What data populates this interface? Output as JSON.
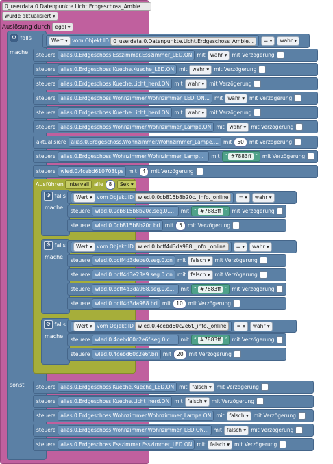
{
  "trigger": {
    "object_id": "0_userdata.0.Datenpunkte.Licht.Erdgeschoss_Ambie...",
    "event": "wurde aktualisiert",
    "ausloesung_label": "Auslösung durch",
    "ausloesung_value": "egal"
  },
  "labels": {
    "falls": "falls",
    "mache": "mache",
    "sonst": "sonst",
    "wert": "Wert",
    "vom_objekt_id": "vom Objekt ID",
    "steuere": "steuere",
    "aktualisiere": "aktualisiere",
    "mit": "mit",
    "mit_verzoegerung": "mit Verzögerung",
    "eq": "=",
    "wahr": "wahr",
    "falsch": "falsch",
    "ausfuehren": "Ausführen",
    "intervall": "Intervall",
    "alle": "alle",
    "sek": "Sek"
  },
  "main_condition": {
    "object_id": "0_userdata.0.Datenpunkte.Licht.Erdgeschoss_Ambie...",
    "value": "wahr"
  },
  "mache_rows": [
    {
      "action": "steuere",
      "target": "alias.0.Erdgeschoss.Esszimmer.Esszimmer_LED.ON",
      "value": "wahr"
    },
    {
      "action": "steuere",
      "target": "alias.0.Erdgeschoss.Kueche.Kueche_LED.ON",
      "value": "wahr"
    },
    {
      "action": "steuere",
      "target": "alias.0.Erdgeschoss.Kueche.Licht_herd.ON",
      "value": "wahr"
    },
    {
      "action": "steuere",
      "target": "alias.0.Erdgeschoss.Wohnzimmer.Wohnzimmer_LED_ON...",
      "value": "wahr"
    },
    {
      "action": "steuere",
      "target": "alias.0.Erdgeschoss.Kueche.Licht_herd.ON",
      "value": "wahr"
    },
    {
      "action": "steuere",
      "target": "alias.0.Erdgeschoss.Wohnzimmer.Wohnzimmer_Lampe.ON",
      "value": "wahr"
    },
    {
      "action": "aktualisiere",
      "target": "alias.0.Erdgeschoss.Wohnzimmer.Wohnzimmer_Lampe....",
      "value": "50"
    },
    {
      "action": "steuere",
      "target": "alias.0.Erdgeschoss.Wohnzimmer.Wohnzimmer_Lampe....",
      "value": "#7883ff"
    },
    {
      "action": "steuere",
      "target": "wled.0.4cebd610703f.ps",
      "value": "4"
    }
  ],
  "interval": {
    "seconds": "8"
  },
  "sub_ifs": [
    {
      "object_id": "wled.0.0cb815b8b20c._info._online",
      "value": "wahr",
      "rows": [
        {
          "target": "wled.0.0cb815b8b20c.seg.0.col.0_HEX",
          "value": "#7883ff"
        },
        {
          "target": "wled.0.0cb815b8b20c.bri",
          "value": "5"
        }
      ]
    },
    {
      "object_id": "wled.0.bcff4d3da988._info._online",
      "value": "wahr",
      "rows": [
        {
          "target": "wled.0.bcff4d3debe0.seg.0.on",
          "value": "falsch"
        },
        {
          "target": "wled.0.bcff4d3e23a9.seg.0.on",
          "value": "falsch"
        },
        {
          "target": "wled.0.bcff4d3da988.seg.0.col.0_HEX",
          "value": "#7883ff"
        },
        {
          "target": "wled.0.bcff4d3da988.bri",
          "value": "10"
        }
      ]
    },
    {
      "object_id": "wled.0.4cebd60c2e6f._info._online",
      "value": "wahr",
      "rows": [
        {
          "target": "wled.0.4cebd60c2e6f.seg.0.col.0_HEX",
          "value": "#7883ff"
        },
        {
          "target": "wled.0.4cebd60c2e6f.bri",
          "value": "20"
        }
      ]
    }
  ],
  "sonst_rows": [
    {
      "target": "alias.0.Erdgeschoss.Kueche.Kueche_LED.ON",
      "value": "falsch"
    },
    {
      "target": "alias.0.Erdgeschoss.Kueche.Licht_herd.ON",
      "value": "falsch"
    },
    {
      "target": "alias.0.Erdgeschoss.Wohnzimmer.Wohnzimmer_Lampe.ON",
      "value": "falsch"
    },
    {
      "target": "alias.0.Erdgeschoss.Wohnzimmer.Wohnzimmer_LED.ON...",
      "value": "falsch"
    },
    {
      "target": "alias.0.Erdgeschoss.Esszimmer.Esszimmer_LED.ON",
      "value": "falsch"
    }
  ],
  "colors": {
    "trigger": "#c0609e",
    "logic": "#5b80a5",
    "interval": "#a6ae3a",
    "color_value": "#4fa28a"
  }
}
